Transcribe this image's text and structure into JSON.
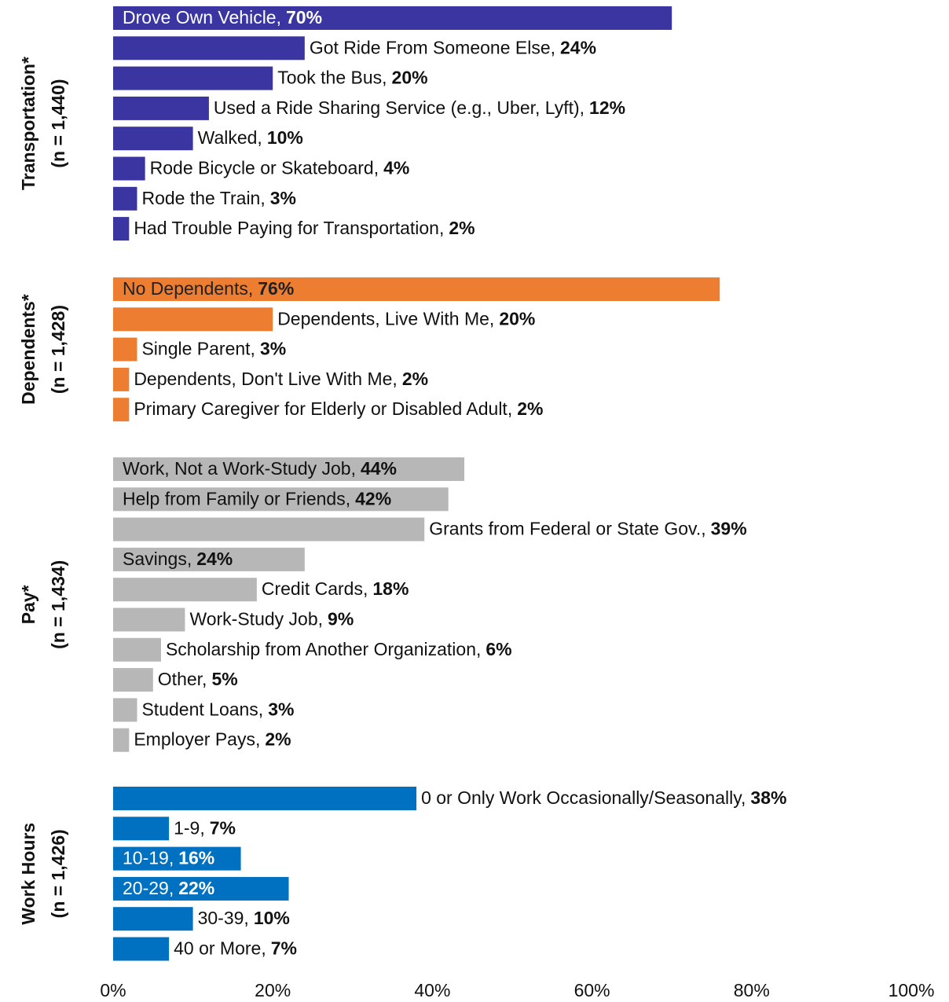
{
  "chart_data": {
    "type": "bar",
    "orientation": "horizontal",
    "xlim": [
      0,
      100
    ],
    "xticks": [
      {
        "value": 0,
        "label": "0%"
      },
      {
        "value": 20,
        "label": "20%"
      },
      {
        "value": 40,
        "label": "40%"
      },
      {
        "value": 60,
        "label": "60%"
      },
      {
        "value": 80,
        "label": "80%"
      },
      {
        "value": 100,
        "label": "100%"
      }
    ],
    "panels": [
      {
        "title": "Transportation*",
        "subtitle": "(n = 1,440)",
        "color": "#3a35a0",
        "inside_label_color": "#ffffff",
        "categories": [
          "Drove Own Vehicle,",
          "Got Ride From Someone Else,",
          "Took the Bus,",
          "Used a Ride Sharing Service (e.g., Uber, Lyft),",
          "Walked,",
          "Rode Bicycle or Skateboard,",
          "Rode the Train,",
          "Had Trouble Paying for Transportation,"
        ],
        "values": [
          70,
          24,
          20,
          12,
          10,
          4,
          3,
          2
        ],
        "value_labels": [
          "70%",
          "24%",
          "20%",
          "12%",
          "10%",
          "4%",
          "3%",
          "2%"
        ]
      },
      {
        "title": "Dependents*",
        "subtitle": "(n = 1,428)",
        "color": "#ed7d31",
        "inside_label_color": "#222222",
        "categories": [
          "No Dependents,",
          "Dependents, Live With Me,",
          "Single Parent,",
          "Dependents, Don't Live With Me,",
          "Primary Caregiver for Elderly or Disabled Adult,"
        ],
        "values": [
          76,
          20,
          3,
          2,
          2
        ],
        "value_labels": [
          "76%",
          "20%",
          "3%",
          "2%",
          "2%"
        ]
      },
      {
        "title": "Pay*",
        "subtitle": "(n = 1,434)",
        "color": "#b7b7b7",
        "inside_label_color": "#111111",
        "categories": [
          "Work, Not a Work-Study Job,",
          "Help from Family or Friends,",
          "Grants from Federal or State Gov.,",
          "Savings,",
          "Credit Cards,",
          "Work-Study Job,",
          "Scholarship from Another Organization,",
          "Other,",
          "Student Loans,",
          "Employer Pays,"
        ],
        "values": [
          44,
          42,
          39,
          24,
          18,
          9,
          6,
          5,
          3,
          2
        ],
        "value_labels": [
          "44%",
          "42%",
          "39%",
          "24%",
          "18%",
          "9%",
          "6%",
          "5%",
          "3%",
          "2%"
        ]
      },
      {
        "title": "Work Hours",
        "subtitle": "(n = 1,426)",
        "color": "#0070c0",
        "inside_label_color": "#ffffff",
        "categories": [
          "0 or Only Work Occasionally/Seasonally,",
          "1-9,",
          "10-19,",
          "20-29,",
          "30-39,",
          "40 or More,"
        ],
        "values": [
          38,
          7,
          16,
          22,
          10,
          7
        ],
        "value_labels": [
          "38%",
          "7%",
          "16%",
          "22%",
          "10%",
          "7%"
        ]
      }
    ]
  }
}
